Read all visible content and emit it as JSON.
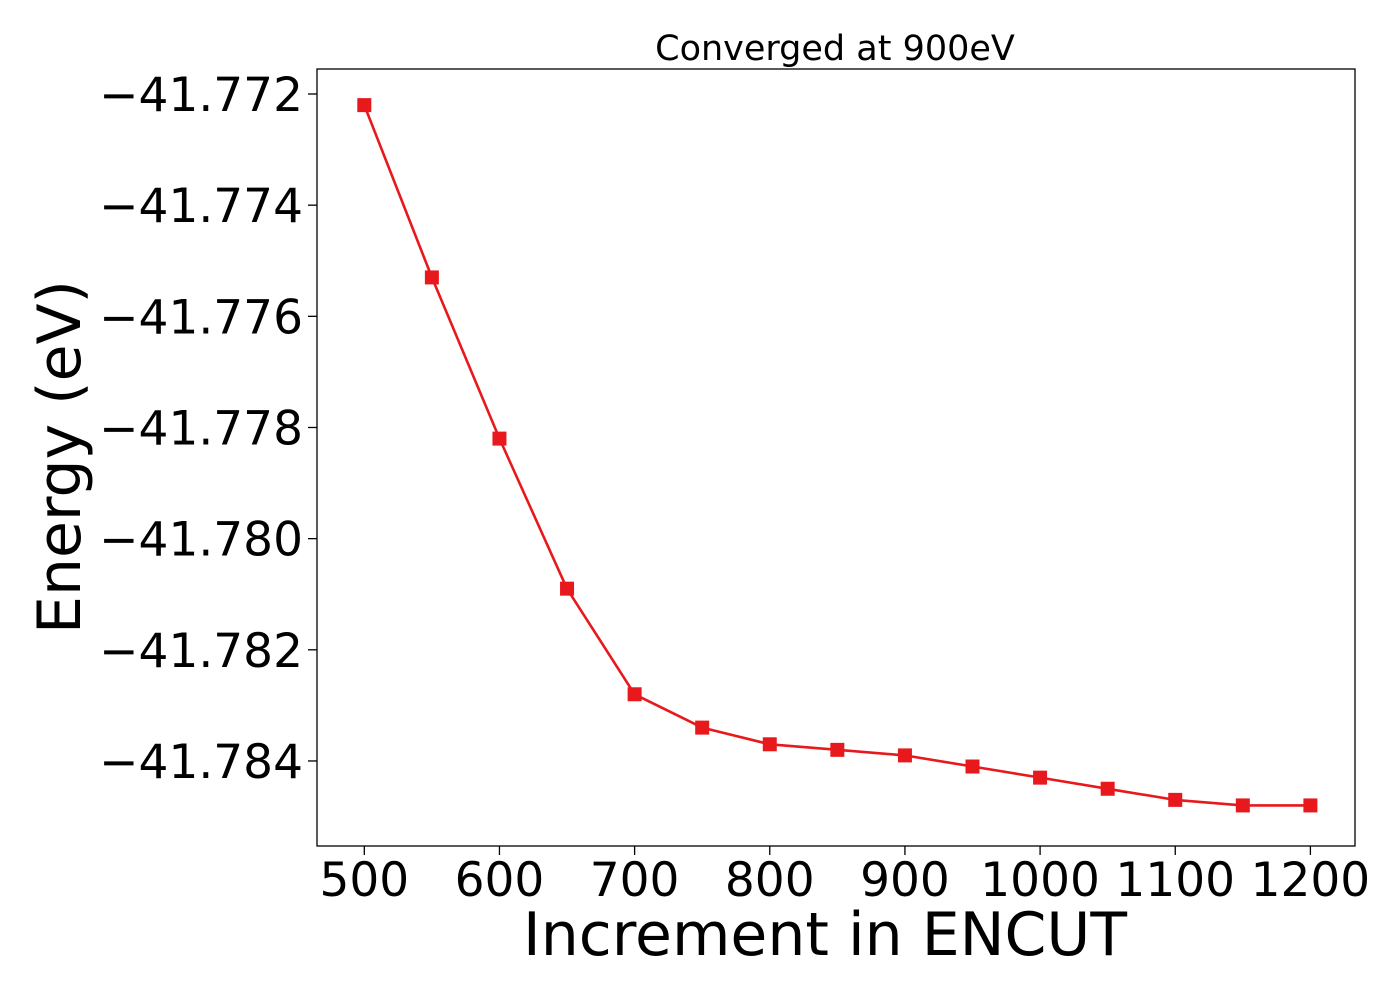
{
  "chart_data": {
    "type": "line",
    "title": "Converged at 900eV",
    "xlabel": "Increment in ENCUT",
    "ylabel": "Energy (eV)",
    "x": [
      500,
      550,
      600,
      650,
      700,
      750,
      800,
      850,
      900,
      950,
      1000,
      1050,
      1100,
      1150,
      1200
    ],
    "series": [
      {
        "values": [
          -41.7722,
          -41.7753,
          -41.7782,
          -41.7809,
          -41.7828,
          -41.7834,
          -41.7837,
          -41.7838,
          -41.7839,
          -41.7841,
          -41.7843,
          -41.7845,
          -41.7847,
          -41.7848,
          -41.7848
        ],
        "color": "#e8191c",
        "marker": "square"
      }
    ],
    "xlim": [
      465,
      1233
    ],
    "ylim": [
      -41.78553,
      -41.77155
    ],
    "xticks": [
      500,
      600,
      700,
      800,
      900,
      1000,
      1100,
      1200
    ],
    "xtick_labels": [
      "500",
      "600",
      "700",
      "800",
      "900",
      "1000",
      "1100",
      "1200"
    ],
    "yticks": [
      -41.772,
      -41.774,
      -41.776,
      -41.778,
      -41.78,
      -41.782,
      -41.784
    ],
    "ytick_labels": [
      "−41.772",
      "−41.774",
      "−41.776",
      "−41.778",
      "−41.780",
      "−41.782",
      "−41.784"
    ],
    "grid": false,
    "legend": "none"
  }
}
